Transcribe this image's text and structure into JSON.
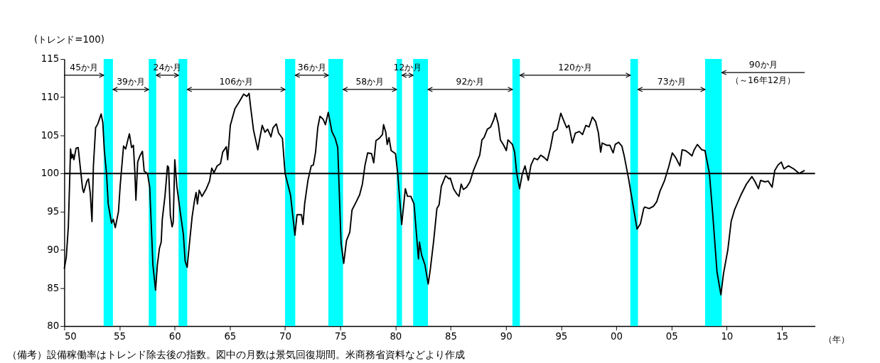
{
  "chart_data": {
    "type": "line",
    "ylabel": "(トレンド=100)",
    "xlabel": "（年）",
    "xlim": [
      1950,
      2018
    ],
    "ylim": [
      80,
      115
    ],
    "xticks": [
      {
        "value": 1950,
        "label": "50"
      },
      {
        "value": 1955,
        "label": "55"
      },
      {
        "value": 1960,
        "label": "60"
      },
      {
        "value": 1965,
        "label": "65"
      },
      {
        "value": 1970,
        "label": "70"
      },
      {
        "value": 1975,
        "label": "75"
      },
      {
        "value": 1980,
        "label": "80"
      },
      {
        "value": 1985,
        "label": "85"
      },
      {
        "value": 1990,
        "label": "90"
      },
      {
        "value": 1995,
        "label": "95"
      },
      {
        "value": 2000,
        "label": "00"
      },
      {
        "value": 2005,
        "label": "05"
      },
      {
        "value": 2010,
        "label": "10"
      },
      {
        "value": 2015,
        "label": "15"
      }
    ],
    "yticks": [
      80,
      85,
      90,
      95,
      100,
      105,
      110,
      115
    ],
    "grid": false,
    "marker": "none",
    "line_style": "solid",
    "x": [
      1950.0,
      1950.18,
      1950.37,
      1950.57,
      1950.67,
      1950.77,
      1950.87,
      1951.07,
      1951.26,
      1951.4,
      1951.66,
      1951.76,
      1952.05,
      1952.19,
      1952.35,
      1952.51,
      1952.64,
      1952.84,
      1953.04,
      1953.34,
      1953.49,
      1953.63,
      1953.83,
      1953.98,
      1954.28,
      1954.44,
      1954.62,
      1954.91,
      1955.07,
      1955.37,
      1955.56,
      1955.76,
      1955.9,
      1956.1,
      1956.26,
      1956.39,
      1956.49,
      1956.65,
      1956.85,
      1957.08,
      1957.24,
      1957.54,
      1957.74,
      1958.03,
      1958.27,
      1958.43,
      1958.62,
      1958.78,
      1958.88,
      1959.12,
      1959.35,
      1959.45,
      1959.61,
      1959.77,
      1959.87,
      1960.01,
      1960.2,
      1960.5,
      1960.79,
      1960.95,
      1961.13,
      1961.35,
      1961.58,
      1961.78,
      1961.94,
      1962.06,
      1962.22,
      1962.47,
      1962.87,
      1963.16,
      1963.36,
      1963.56,
      1963.85,
      1964.15,
      1964.35,
      1964.68,
      1964.8,
      1965.04,
      1965.46,
      1965.85,
      1966.25,
      1966.54,
      1966.74,
      1966.88,
      1967.14,
      1967.53,
      1967.67,
      1967.93,
      1968.18,
      1968.42,
      1968.72,
      1968.91,
      1969.21,
      1969.41,
      1969.76,
      1970.0,
      1970.49,
      1970.89,
      1971.08,
      1971.48,
      1971.62,
      1971.77,
      1972.07,
      1972.37,
      1972.56,
      1972.76,
      1972.96,
      1973.16,
      1973.45,
      1973.65,
      1973.91,
      1974.24,
      1974.54,
      1974.77,
      1975.07,
      1975.31,
      1975.56,
      1975.86,
      1976.06,
      1976.45,
      1976.75,
      1977.0,
      1977.24,
      1977.48,
      1977.83,
      1978.03,
      1978.23,
      1978.52,
      1978.82,
      1978.92,
      1979.12,
      1979.25,
      1979.41,
      1979.61,
      1980.0,
      1980.2,
      1980.56,
      1980.89,
      1981.09,
      1981.39,
      1981.68,
      1982.08,
      1982.17,
      1982.37,
      1982.67,
      1982.96,
      1983.16,
      1983.46,
      1983.75,
      1983.95,
      1984.15,
      1984.54,
      1984.84,
      1984.96,
      1985.26,
      1985.56,
      1985.75,
      1985.95,
      1986.15,
      1986.44,
      1986.74,
      1987.04,
      1987.43,
      1987.63,
      1987.83,
      1988.02,
      1988.32,
      1988.62,
      1988.91,
      1989.05,
      1989.31,
      1989.5,
      1989.8,
      1990.04,
      1990.19,
      1990.59,
      1990.79,
      1990.98,
      1991.24,
      1991.48,
      1991.73,
      1992.03,
      1992.27,
      1992.56,
      1992.86,
      1993.16,
      1993.45,
      1993.75,
      1994.04,
      1994.3,
      1994.64,
      1994.97,
      1995.27,
      1995.5,
      1995.7,
      1996.02,
      1996.29,
      1996.65,
      1996.94,
      1997.24,
      1997.53,
      1997.83,
      1998.13,
      1998.38,
      1998.58,
      1998.72,
      1999.11,
      1999.41,
      1999.71,
      1999.9,
      2000.2,
      2000.5,
      2000.7,
      2001.1,
      2001.39,
      2001.88,
      2002.18,
      2002.48,
      2002.57,
      2002.97,
      2003.36,
      2003.66,
      2003.96,
      2004.35,
      2004.75,
      2005.07,
      2005.37,
      2005.76,
      2005.96,
      2006.26,
      2006.55,
      2006.85,
      2007.05,
      2007.34,
      2007.74,
      2008.03,
      2008.43,
      2008.72,
      2009.12,
      2009.47,
      2009.71,
      2010.1,
      2010.4,
      2010.7,
      2010.99,
      2011.29,
      2011.78,
      2012.28,
      2012.57,
      2012.87,
      2013.07,
      2013.46,
      2013.76,
      2014.11,
      2014.35,
      2014.64,
      2014.94,
      2015.18,
      2015.58,
      2016.07,
      2016.57,
      2017.06
    ],
    "series": [
      {
        "color": "#000000",
        "values": [
          87.5,
          89.0,
          93.0,
          103.2,
          102.0,
          102.5,
          101.8,
          103.3,
          103.4,
          101.5,
          98.0,
          97.5,
          99.0,
          99.3,
          97.5,
          93.7,
          101.0,
          106.0,
          106.5,
          107.8,
          106.7,
          103.0,
          100.0,
          96.0,
          93.5,
          94.0,
          92.9,
          95.0,
          98.5,
          103.6,
          103.2,
          104.4,
          105.2,
          103.4,
          103.7,
          100.3,
          96.5,
          101.5,
          102.3,
          102.9,
          100.3,
          100.0,
          98.2,
          88.0,
          84.7,
          88.0,
          90.2,
          91.0,
          94.0,
          97.0,
          101.0,
          100.8,
          94.5,
          93.0,
          93.6,
          101.8,
          98.3,
          95.0,
          92.0,
          88.5,
          87.7,
          91.0,
          94.3,
          96.3,
          97.5,
          96.0,
          97.8,
          97.0,
          98.0,
          99.0,
          100.7,
          100.1,
          101.0,
          101.3,
          102.8,
          103.5,
          101.8,
          106.3,
          108.5,
          109.4,
          110.4,
          110.1,
          110.5,
          108.7,
          105.7,
          103.1,
          104.3,
          106.3,
          105.4,
          105.8,
          104.8,
          106.0,
          106.5,
          105.3,
          104.6,
          100.0,
          97.2,
          91.9,
          94.6,
          94.6,
          93.3,
          96.0,
          99.1,
          101.0,
          101.1,
          102.8,
          106.0,
          107.5,
          107.1,
          106.4,
          108.0,
          105.5,
          104.6,
          103.4,
          90.9,
          88.2,
          91.2,
          92.3,
          95.2,
          96.3,
          97.2,
          98.6,
          101.1,
          102.7,
          102.6,
          101.4,
          104.3,
          104.6,
          105.1,
          106.4,
          105.4,
          103.8,
          104.7,
          103.0,
          102.6,
          100.0,
          93.3,
          98.0,
          97.0,
          97.0,
          96.0,
          88.8,
          91.0,
          89.3,
          88.0,
          85.5,
          87.5,
          91.2,
          95.4,
          95.9,
          98.3,
          99.7,
          99.3,
          99.4,
          98.0,
          97.3,
          97.0,
          98.6,
          97.9,
          98.2,
          98.9,
          100.3,
          101.7,
          102.4,
          104.4,
          104.7,
          105.8,
          106.1,
          107.1,
          107.9,
          106.5,
          104.4,
          103.7,
          103.0,
          104.4,
          103.8,
          102.8,
          100.0,
          98.0,
          99.9,
          101.0,
          99.1,
          101.1,
          102.0,
          101.8,
          102.4,
          102.1,
          101.7,
          103.4,
          105.4,
          105.8,
          107.9,
          106.8,
          106.0,
          106.3,
          104.0,
          105.3,
          105.5,
          105.1,
          106.3,
          106.1,
          107.4,
          106.8,
          105.3,
          102.8,
          104.0,
          103.7,
          103.7,
          102.7,
          103.8,
          104.1,
          103.6,
          102.4,
          99.4,
          96.9,
          92.7,
          93.4,
          95.4,
          95.6,
          95.4,
          95.7,
          96.3,
          97.7,
          99.0,
          100.9,
          102.7,
          102.1,
          101.0,
          103.1,
          103.0,
          102.7,
          102.3,
          103.1,
          103.8,
          103.1,
          103.0,
          100.0,
          94.9,
          87.1,
          84.1,
          86.9,
          90.0,
          93.7,
          95.2,
          96.2,
          97.2,
          98.6,
          99.6,
          98.9,
          98.0,
          99.1,
          98.9,
          99.0,
          98.2,
          100.4,
          101.1,
          101.5,
          100.6,
          101.0,
          100.6,
          100.0,
          100.4
        ]
      }
    ],
    "ref_lines": [
      {
        "axis": "y",
        "value": 100,
        "color": "#000000"
      }
    ],
    "bands": [
      {
        "axis": "x",
        "from": 1953.57,
        "to": 1954.41,
        "color": "#00ffff"
      },
      {
        "axis": "x",
        "from": 1957.65,
        "to": 1958.33,
        "color": "#00ffff"
      },
      {
        "axis": "x",
        "from": 1960.35,
        "to": 1961.14,
        "color": "#00ffff"
      },
      {
        "axis": "x",
        "from": 1970.0,
        "to": 1970.92,
        "color": "#00ffff"
      },
      {
        "axis": "x",
        "from": 1973.92,
        "to": 1975.25,
        "color": "#00ffff"
      },
      {
        "axis": "x",
        "from": 1980.1,
        "to": 1980.59,
        "color": "#00ffff"
      },
      {
        "axis": "x",
        "from": 1981.6,
        "to": 1982.94,
        "color": "#00ffff"
      },
      {
        "axis": "x",
        "from": 1990.59,
        "to": 1991.27,
        "color": "#00ffff"
      },
      {
        "axis": "x",
        "from": 2001.27,
        "to": 2001.96,
        "color": "#00ffff"
      },
      {
        "axis": "x",
        "from": 2008.04,
        "to": 2009.55,
        "color": "#00ffff"
      }
    ],
    "annotations": [
      "45か月",
      "39か月",
      "24か月",
      "106か月",
      "36か月",
      "58か月",
      "12か月",
      "92か月",
      "120か月",
      "73か月",
      "90か月",
      "（～16年12月）",
      "（備考）設備稼働率はトレンド除去後の指数。図中の月数は景気回復期間。米商務省資料などより作成"
    ]
  }
}
